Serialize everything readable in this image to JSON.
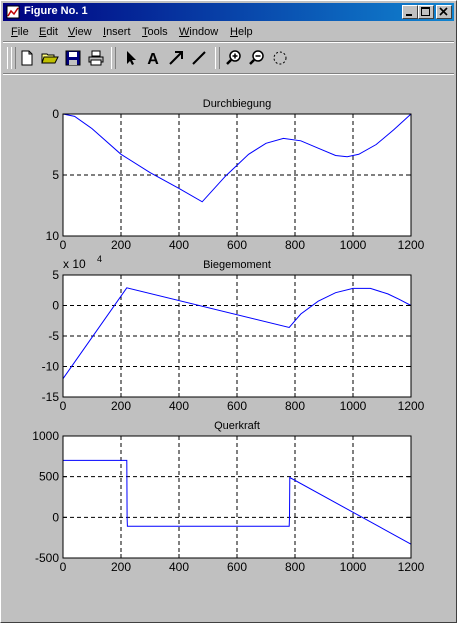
{
  "window": {
    "title": "Figure No. 1",
    "title_bar_color": "#000080",
    "controls": [
      "minimize-icon",
      "maximize-icon",
      "close-icon"
    ]
  },
  "menu": {
    "items": [
      {
        "label": "File",
        "key": "F"
      },
      {
        "label": "Edit",
        "key": "E"
      },
      {
        "label": "View",
        "key": "V"
      },
      {
        "label": "Insert",
        "key": "I"
      },
      {
        "label": "Tools",
        "key": "T"
      },
      {
        "label": "Window",
        "key": "W"
      },
      {
        "label": "Help",
        "key": "H"
      }
    ]
  },
  "toolbar": {
    "buttons": [
      "new-file-icon",
      "open-folder-icon",
      "save-disk-icon",
      "print-icon",
      "select-arrow-icon",
      "insert-text-icon",
      "insert-arrow-icon",
      "insert-line-icon",
      "zoom-in-icon",
      "zoom-out-icon",
      "rotate-icon"
    ],
    "text_tool_glyph": "A"
  },
  "figure": {
    "background": "#c0c0c0",
    "axes_background": "#ffffff",
    "line_color": "#0000ff"
  },
  "chart_data": [
    {
      "type": "line",
      "title": "Durchbiegung",
      "xlabel": "",
      "ylabel": "",
      "xlim": [
        0,
        1200
      ],
      "ylim": [
        0,
        10
      ],
      "y_reversed": true,
      "xticks": [
        0,
        200,
        400,
        600,
        800,
        1000,
        1200
      ],
      "yticks": [
        0,
        5,
        10
      ],
      "grid": true,
      "series": [
        {
          "x": [
            0,
            40,
            100,
            200,
            300,
            400,
            480,
            560,
            640,
            700,
            760,
            820,
            880,
            940,
            980,
            1020,
            1080,
            1140,
            1200
          ],
          "y": [
            0,
            0.2,
            1.2,
            3.3,
            4.8,
            6.1,
            7.2,
            5.1,
            3.3,
            2.4,
            2.0,
            2.2,
            2.8,
            3.4,
            3.5,
            3.3,
            2.5,
            1.3,
            0
          ]
        }
      ]
    },
    {
      "type": "line",
      "title": "Biegemoment",
      "axis_multiplier": "x 10",
      "axis_multiplier_exponent": "4",
      "xlabel": "",
      "ylabel": "",
      "xlim": [
        0,
        1200
      ],
      "ylim": [
        -15,
        5
      ],
      "xticks": [
        0,
        200,
        400,
        600,
        800,
        1000,
        1200
      ],
      "yticks": [
        5,
        0,
        -5,
        -10,
        -15
      ],
      "grid": true,
      "series": [
        {
          "x": [
            0,
            220,
            780,
            820,
            880,
            940,
            1000,
            1060,
            1120,
            1160,
            1200
          ],
          "y": [
            -12,
            2.9,
            -3.6,
            -1.4,
            0.7,
            2.1,
            2.8,
            2.8,
            1.9,
            1.0,
            0
          ]
        }
      ]
    },
    {
      "type": "line",
      "title": "Querkraft",
      "xlabel": "",
      "ylabel": "",
      "xlim": [
        0,
        1200
      ],
      "ylim": [
        -500,
        1000
      ],
      "xticks": [
        0,
        200,
        400,
        600,
        800,
        1000,
        1200
      ],
      "yticks": [
        1000,
        500,
        0,
        -500
      ],
      "grid": true,
      "series": [
        {
          "x": [
            0,
            220,
            221,
            222,
            780,
            781,
            782,
            1200
          ],
          "y": [
            700,
            700,
            0,
            -110,
            -110,
            0,
            490,
            -330
          ]
        }
      ]
    }
  ]
}
